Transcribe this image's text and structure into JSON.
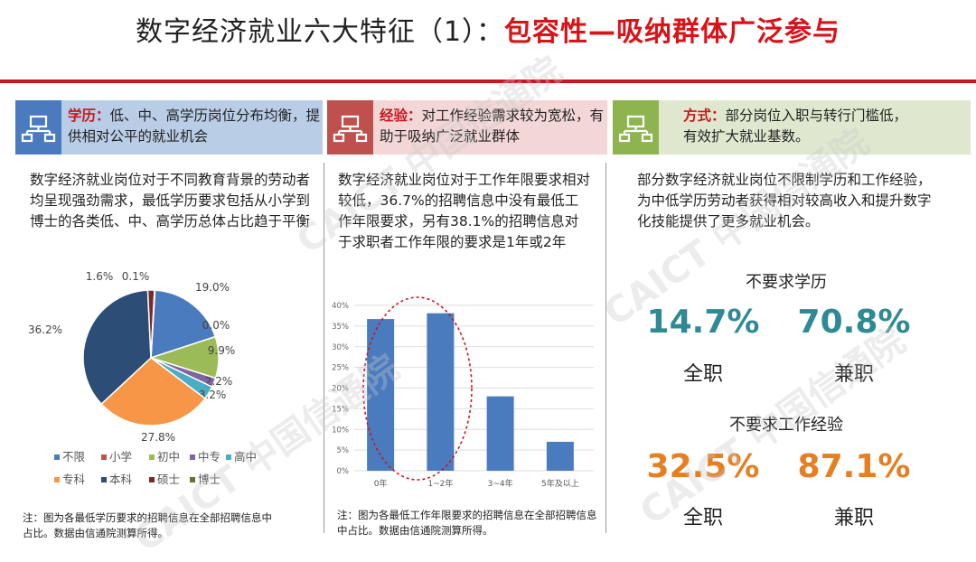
{
  "title": {
    "part1": "数字经济就业六大特征（1）：",
    "part2": "包容性—吸纳群体广泛参与"
  },
  "colors": {
    "accent_red": "#c9151e",
    "teal": "#2e8a95",
    "orange": "#e67e22"
  },
  "sections": [
    {
      "icon": "network-icon",
      "head_bold": "学历：",
      "head_text": "低、中、高学历岗位分布均衡，提供相对公平的就业机会",
      "para": "数字经济就业岗位对于不同教育背景的劳动者均呈现强劲需求，最低学历要求包括从小学到博士的各类低、中、高学历总体占比趋于平衡",
      "note": "注：图为各最低学历要求的招聘信息在全部招聘信息中占比。数据由信通院测算所得。"
    },
    {
      "icon": "network-icon",
      "head_bold": "经验：",
      "head_text": "对工作经验需求较为宽松，有助于吸纳广泛就业群体",
      "para": "数字经济就业岗位对于工作年限要求相对较低，36.7%的招聘信息中没有最低工作年限要求，另有38.1%的招聘信息对于求职者工作年限的要求是1年或2年",
      "note": "注：图为各最低工作年限要求的招聘信息在全部招聘信息中占比。数据由信通院测算所得。"
    },
    {
      "icon": "network-icon",
      "head_bold": "方式：",
      "head_text": "部分岗位入职与转行门槛低，有效扩大就业基数。",
      "para": "部分数字经济就业岗位不限制学历和工作经验，为中低学历劳动者获得相对较高收入和提升数字化技能提供了更多就业机会。"
    }
  ],
  "stats": {
    "group1": {
      "label": "不要求学历",
      "full": "14.7%",
      "part": "70.8%",
      "full_label": "全职",
      "part_label": "兼职"
    },
    "group2": {
      "label": "不要求工作经验",
      "full": "32.5%",
      "part": "87.1%",
      "full_label": "全职",
      "part_label": "兼职"
    }
  },
  "watermark": "CAICT 中国信通院",
  "chart_data": [
    {
      "type": "pie",
      "categories": [
        "不限",
        "小学",
        "初中",
        "中专",
        "高中",
        "专科",
        "本科",
        "硕士",
        "博士"
      ],
      "values": [
        19.0,
        0.0,
        9.9,
        2.2,
        3.2,
        27.8,
        36.2,
        1.6,
        0.1
      ],
      "labels": [
        "19.0%",
        "0.0%",
        "9.9%",
        "2.2%",
        "3.2%",
        "27.8%",
        "36.2%",
        "1.6%",
        "0.1%"
      ],
      "colors": [
        "#4a7bbf",
        "#c0504d",
        "#9bbb59",
        "#8064a2",
        "#4bacc6",
        "#f79646",
        "#2c4d75",
        "#772c2a",
        "#5f7530"
      ],
      "legend": "bottom"
    },
    {
      "type": "bar",
      "categories": [
        "0年",
        "1~2年",
        "3~4年",
        "5年及以上"
      ],
      "values": [
        36.7,
        38.1,
        18.0,
        7.0
      ],
      "ylim": [
        0,
        40
      ],
      "yticks": [
        "0%",
        "5%",
        "10%",
        "15%",
        "20%",
        "25%",
        "30%",
        "35%",
        "40%"
      ],
      "color": "#4a7bbf",
      "grid": true
    }
  ]
}
